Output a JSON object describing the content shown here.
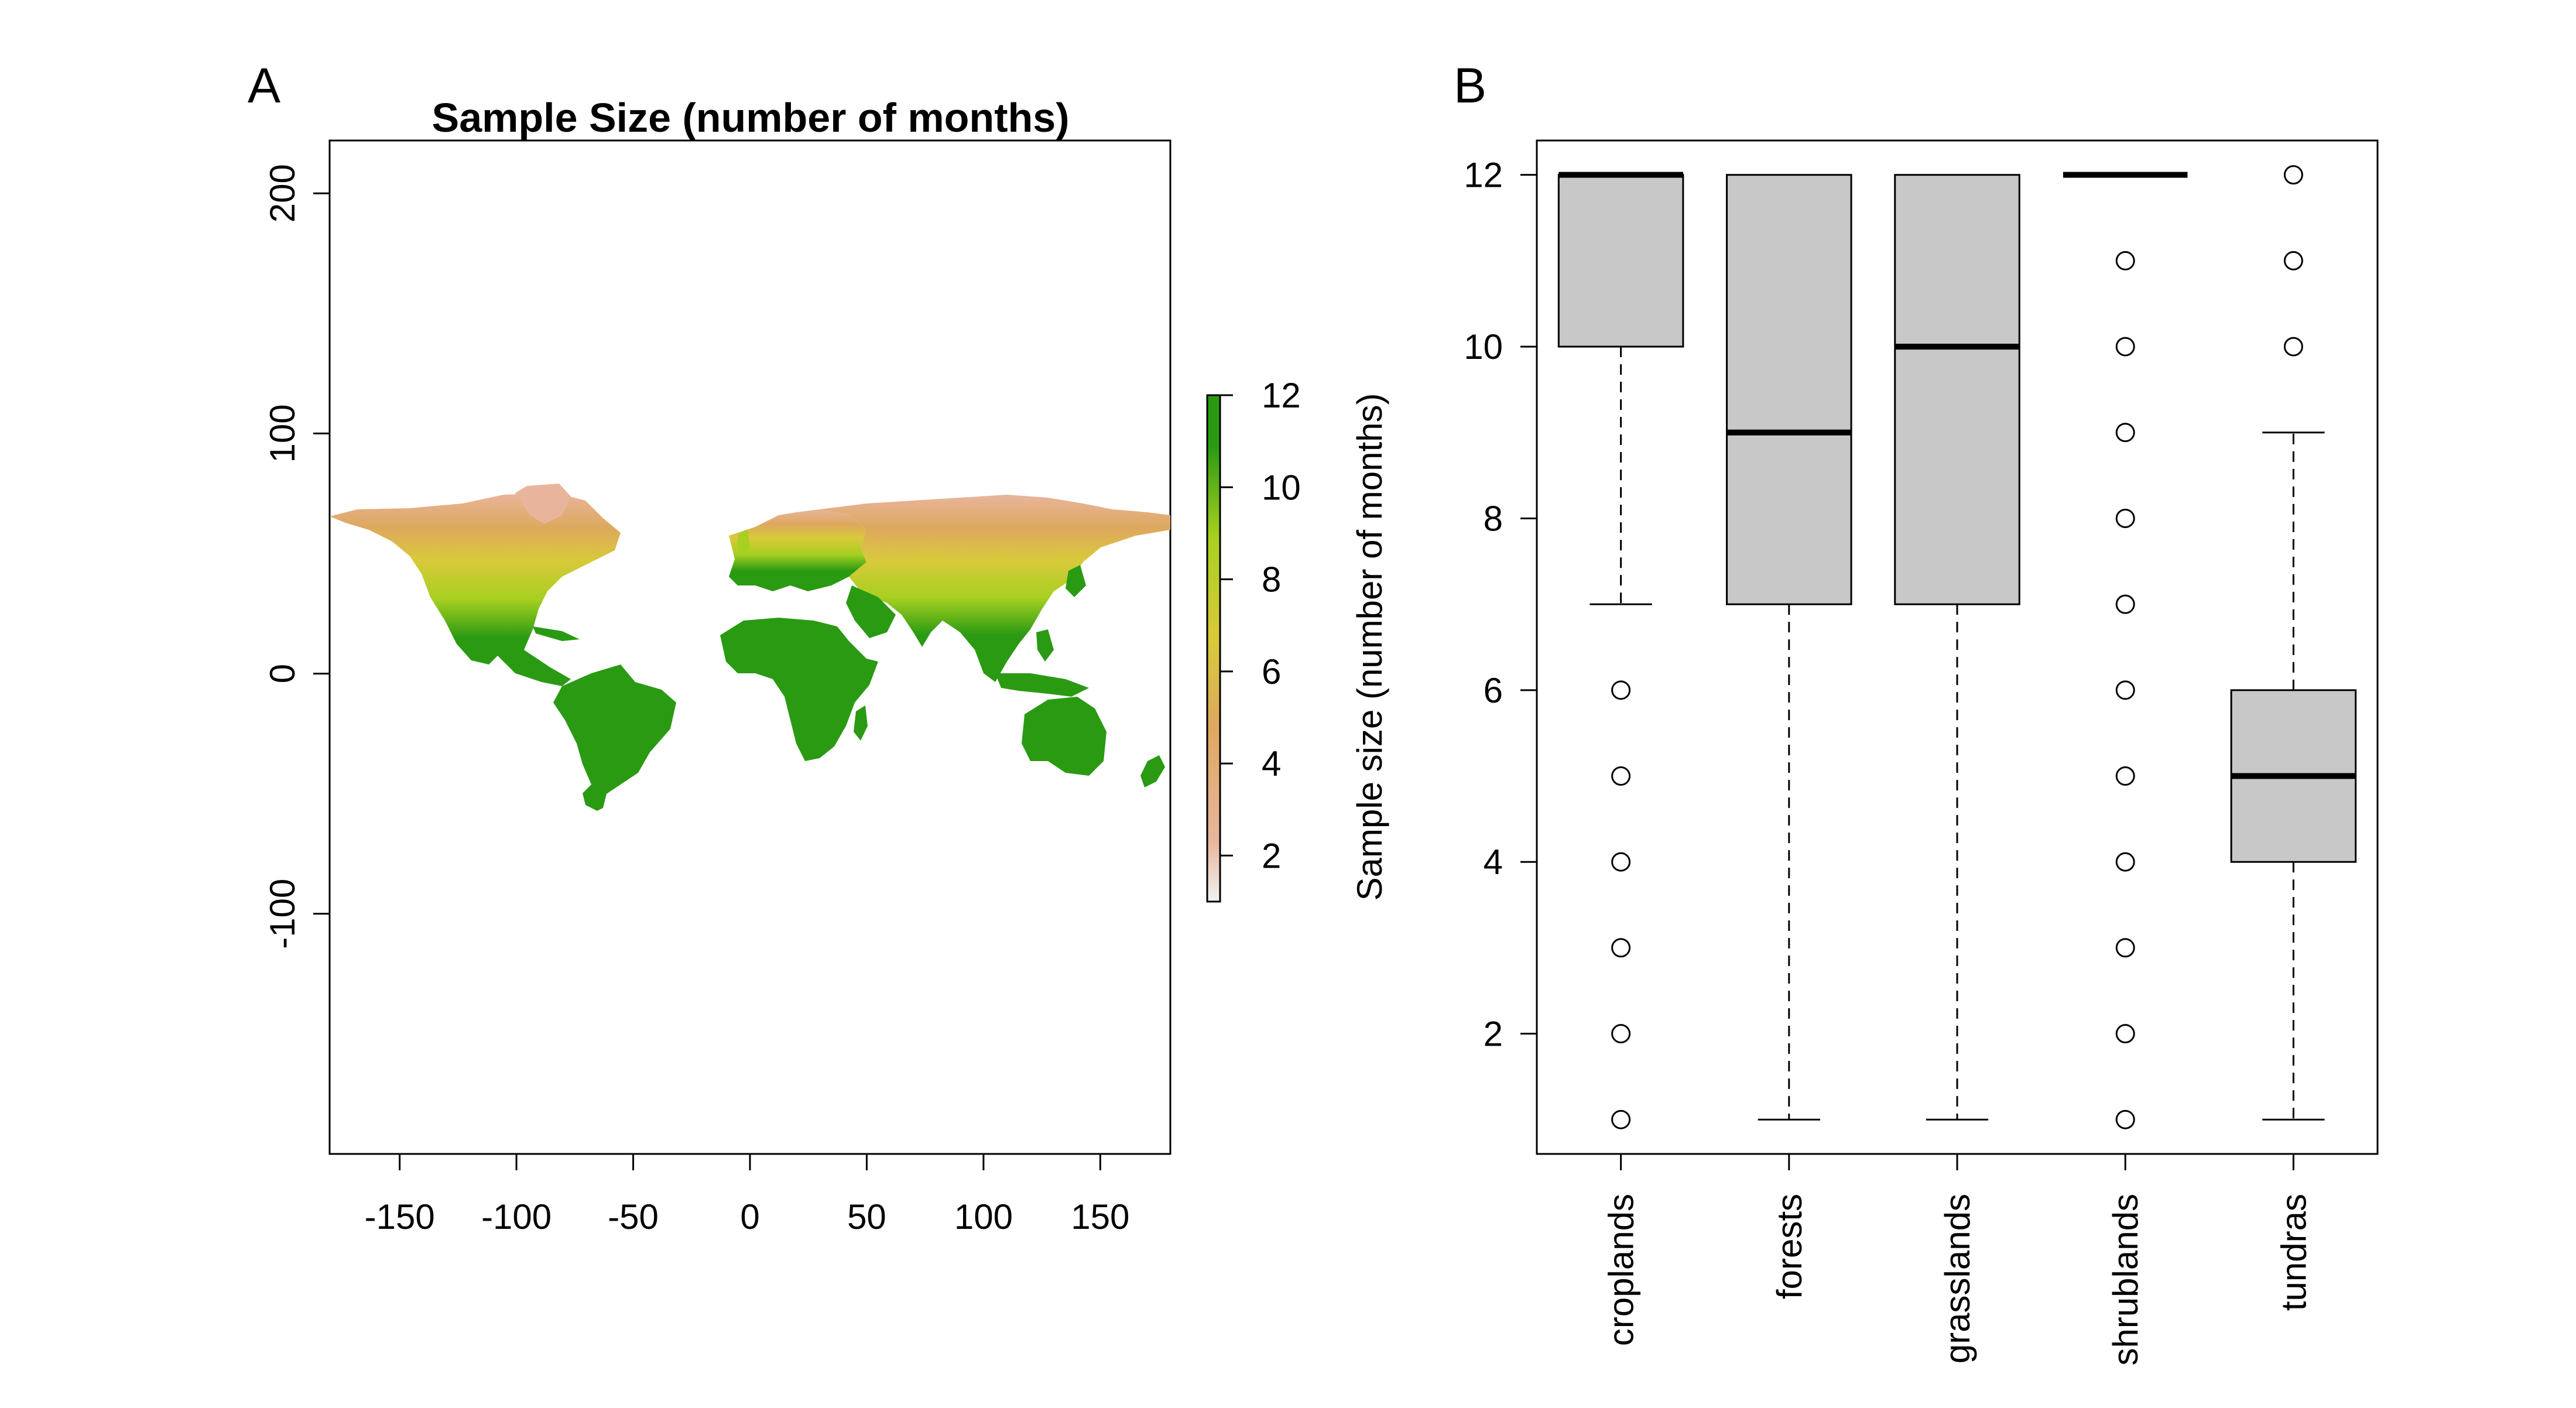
{
  "panels": {
    "a": {
      "letter": "A",
      "title": "Sample Size (number of months)",
      "x_ticks": [
        -150,
        -100,
        -50,
        0,
        50,
        100,
        150
      ],
      "y_ticks": [
        -100,
        0,
        100,
        200
      ],
      "xlim": [
        -180,
        180
      ],
      "ylim": [
        -200,
        222
      ],
      "legend_ticks": [
        2,
        4,
        6,
        8,
        10,
        12
      ],
      "legend_range": [
        1,
        12
      ],
      "legend_colors": [
        "#f2f2f2",
        "#e8b59c",
        "#dea85e",
        "#d9c93a",
        "#a7d020",
        "#2a9a13"
      ]
    },
    "b": {
      "letter": "B"
    }
  },
  "chart_data": [
    {
      "type": "heatmap",
      "title": "Sample Size (number of months)",
      "xlabel": "",
      "ylabel": "",
      "xlim": [
        -180,
        180
      ],
      "ylim": [
        -200,
        222
      ],
      "colorbar_range": [
        1,
        12
      ],
      "colorbar_ticks": [
        2,
        4,
        6,
        8,
        10,
        12
      ],
      "regions": [
        {
          "value": 12,
          "description": "Central/South America, Africa, South/Southeast Asia, eastern USA"
        },
        {
          "value": 10,
          "description": "western North America, Europe"
        },
        {
          "value": 6,
          "description": "southern Canada, central Russia"
        },
        {
          "value": 3,
          "description": "northern Canada, Siberia"
        }
      ]
    },
    {
      "type": "box",
      "ylabel": "Sample size (number of months)",
      "categories": [
        "croplands",
        "forests",
        "grasslands",
        "shrublands",
        "tundras"
      ],
      "ylim": [
        0.6,
        12.4
      ],
      "y_ticks": [
        2,
        4,
        6,
        8,
        10,
        12
      ],
      "boxes": [
        {
          "q1": 10,
          "median": 12,
          "q3": 12,
          "whisker_low": 7,
          "whisker_high": 12,
          "outliers": [
            6,
            5,
            4,
            3,
            2,
            1
          ]
        },
        {
          "q1": 7,
          "median": 9,
          "q3": 12,
          "whisker_low": 1,
          "whisker_high": 12,
          "outliers": []
        },
        {
          "q1": 7,
          "median": 10,
          "q3": 12,
          "whisker_low": 1,
          "whisker_high": 12,
          "outliers": []
        },
        {
          "q1": 12,
          "median": 12,
          "q3": 12,
          "whisker_low": 12,
          "whisker_high": 12,
          "outliers": [
            11,
            10,
            9,
            8,
            7,
            6,
            5,
            4,
            3,
            2,
            1
          ]
        },
        {
          "q1": 4,
          "median": 5,
          "q3": 6,
          "whisker_low": 1,
          "whisker_high": 9,
          "outliers": [
            10,
            11,
            12
          ]
        }
      ]
    }
  ]
}
